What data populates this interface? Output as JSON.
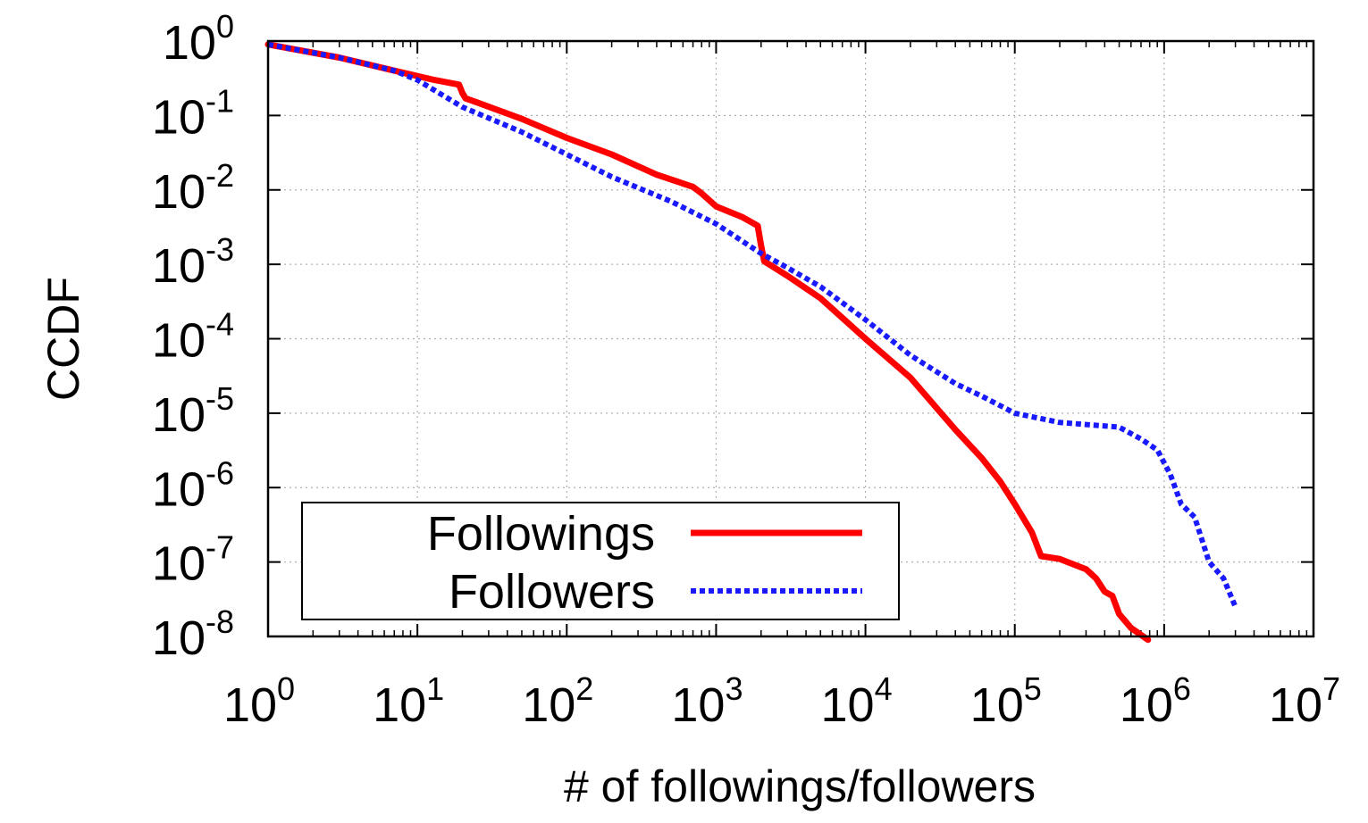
{
  "chart_data": {
    "type": "line",
    "title": "",
    "xlabel": "# of followings/followers",
    "ylabel": "CCDF",
    "xscale": "log",
    "yscale": "log",
    "xlim": [
      1,
      10000000
    ],
    "ylim": [
      1e-08,
      1
    ],
    "grid": true,
    "legend_position": "bottom-left",
    "x_ticks": [
      {
        "base": "10",
        "exp": "0",
        "value": 1
      },
      {
        "base": "10",
        "exp": "1",
        "value": 10
      },
      {
        "base": "10",
        "exp": "2",
        "value": 100
      },
      {
        "base": "10",
        "exp": "3",
        "value": 1000
      },
      {
        "base": "10",
        "exp": "4",
        "value": 10000
      },
      {
        "base": "10",
        "exp": "5",
        "value": 100000
      },
      {
        "base": "10",
        "exp": "6",
        "value": 1000000
      },
      {
        "base": "10",
        "exp": "7",
        "value": 10000000
      }
    ],
    "y_ticks": [
      {
        "base": "10",
        "exp": "0",
        "value": 1
      },
      {
        "base": "10",
        "exp": "-1",
        "value": 0.1
      },
      {
        "base": "10",
        "exp": "-2",
        "value": 0.01
      },
      {
        "base": "10",
        "exp": "-3",
        "value": 0.001
      },
      {
        "base": "10",
        "exp": "-4",
        "value": 0.0001
      },
      {
        "base": "10",
        "exp": "-5",
        "value": 1e-05
      },
      {
        "base": "10",
        "exp": "-6",
        "value": 1e-06
      },
      {
        "base": "10",
        "exp": "-7",
        "value": 1e-07
      },
      {
        "base": "10",
        "exp": "-8",
        "value": 1e-08
      }
    ],
    "series": [
      {
        "name": "Followings",
        "color": "#ff0000",
        "style": "solid",
        "x": [
          1,
          3,
          7,
          13,
          19,
          20,
          21,
          25,
          50,
          100,
          200,
          400,
          700,
          800,
          1000,
          1500,
          1900,
          2000,
          2100,
          3000,
          5000,
          10000,
          20000,
          40000,
          60000,
          80000,
          100000,
          130000,
          150000,
          200000,
          300000,
          350000,
          400000,
          450000,
          500000,
          600000,
          780000
        ],
        "y": [
          0.9,
          0.6,
          0.4,
          0.3,
          0.26,
          0.2,
          0.17,
          0.15,
          0.09,
          0.05,
          0.03,
          0.016,
          0.011,
          0.009,
          0.006,
          0.0043,
          0.0033,
          0.0018,
          0.0011,
          0.0007,
          0.00035,
          0.0001,
          3e-05,
          6e-06,
          2.5e-06,
          1.2e-06,
          6e-07,
          2.5e-07,
          1.2e-07,
          1.1e-07,
          8e-08,
          6e-08,
          4e-08,
          3.5e-08,
          2e-08,
          1.3e-08,
          9e-09
        ]
      },
      {
        "name": "Followers",
        "color": "#1a1aff",
        "style": "dotted",
        "x": [
          1,
          3,
          7,
          10,
          20,
          50,
          100,
          200,
          500,
          1000,
          2000,
          3000,
          5000,
          10000,
          20000,
          40000,
          60000,
          100000,
          200000,
          500000,
          700000,
          900000,
          1100000,
          1300000,
          1600000,
          2000000,
          2500000,
          3000000
        ],
        "y": [
          0.9,
          0.6,
          0.4,
          0.3,
          0.13,
          0.06,
          0.03,
          0.015,
          0.007,
          0.0035,
          0.0014,
          0.0009,
          0.0005,
          0.00018,
          6e-05,
          2.5e-05,
          1.7e-05,
          1e-05,
          7.5e-06,
          6.5e-06,
          4.5e-06,
          3.2e-06,
          1.5e-06,
          6e-07,
          4e-07,
          1e-07,
          6e-08,
          2.5e-08
        ]
      }
    ]
  }
}
